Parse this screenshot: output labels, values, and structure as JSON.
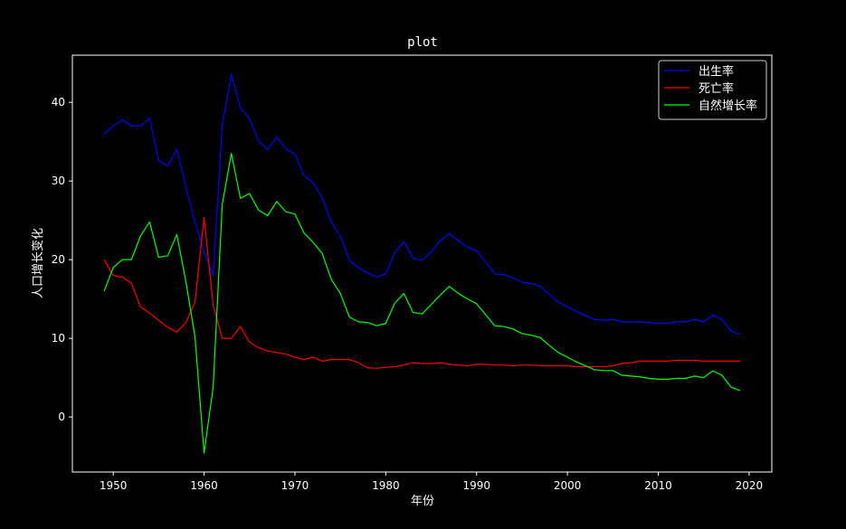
{
  "chart_data": {
    "type": "line",
    "title": "plot",
    "xlabel": "年份",
    "ylabel": "人口增长变化",
    "xlim": [
      1945.5,
      2022.5
    ],
    "ylim": [
      -7,
      46
    ],
    "xticks": [
      1950,
      1960,
      1970,
      1980,
      1990,
      2000,
      2010,
      2020
    ],
    "yticks": [
      0,
      10,
      20,
      30,
      40
    ],
    "legend_position": "top-right",
    "grid": false,
    "x": [
      1949,
      1950,
      1951,
      1952,
      1953,
      1954,
      1955,
      1956,
      1957,
      1958,
      1959,
      1960,
      1961,
      1962,
      1963,
      1964,
      1965,
      1966,
      1967,
      1968,
      1969,
      1970,
      1971,
      1972,
      1973,
      1974,
      1975,
      1976,
      1977,
      1978,
      1979,
      1980,
      1981,
      1982,
      1983,
      1984,
      1985,
      1986,
      1987,
      1988,
      1989,
      1990,
      1991,
      1992,
      1993,
      1994,
      1995,
      1996,
      1997,
      1998,
      1999,
      2000,
      2001,
      2002,
      2003,
      2004,
      2005,
      2006,
      2007,
      2008,
      2009,
      2010,
      2011,
      2012,
      2013,
      2014,
      2015,
      2016,
      2017,
      2018,
      2019
    ],
    "series": [
      {
        "name": "出生率",
        "color": "#0000ff",
        "values": [
          36.0,
          37.0,
          37.8,
          37.0,
          37.0,
          37.97,
          32.6,
          31.9,
          34.0,
          29.2,
          24.8,
          20.9,
          18.0,
          37.0,
          43.6,
          39.3,
          37.9,
          35.1,
          34.0,
          35.6,
          34.1,
          33.4,
          30.7,
          29.8,
          27.9,
          24.8,
          23.0,
          19.9,
          19.0,
          18.3,
          17.8,
          18.2,
          20.9,
          22.3,
          20.2,
          19.9,
          21.0,
          22.4,
          23.3,
          22.4,
          21.6,
          21.1,
          19.7,
          18.2,
          18.1,
          17.7,
          17.1,
          17.0,
          16.6,
          15.6,
          14.6,
          14.0,
          13.4,
          12.9,
          12.4,
          12.3,
          12.4,
          12.1,
          12.1,
          12.1,
          12.0,
          11.9,
          11.9,
          12.1,
          12.1,
          12.4,
          12.1,
          12.95,
          12.43,
          10.94,
          10.48
        ]
      },
      {
        "name": "死亡率",
        "color": "#ff0000",
        "values": [
          20.0,
          18.0,
          17.8,
          17.0,
          14.0,
          13.2,
          12.3,
          11.4,
          10.8,
          12.0,
          14.6,
          25.4,
          14.2,
          10.0,
          10.0,
          11.5,
          9.5,
          8.8,
          8.4,
          8.2,
          8.0,
          7.6,
          7.3,
          7.6,
          7.1,
          7.3,
          7.3,
          7.3,
          6.9,
          6.25,
          6.2,
          6.3,
          6.4,
          6.6,
          6.9,
          6.8,
          6.8,
          6.9,
          6.7,
          6.6,
          6.5,
          6.7,
          6.7,
          6.6,
          6.6,
          6.5,
          6.6,
          6.6,
          6.5,
          6.5,
          6.5,
          6.5,
          6.4,
          6.4,
          6.4,
          6.4,
          6.5,
          6.8,
          6.9,
          7.1,
          7.1,
          7.1,
          7.1,
          7.2,
          7.2,
          7.2,
          7.1,
          7.1,
          7.1,
          7.1,
          7.1
        ]
      },
      {
        "name": "自然增长率",
        "color": "#00ff00",
        "values": [
          16.0,
          19.0,
          20.0,
          20.0,
          23.0,
          24.8,
          20.3,
          20.5,
          23.2,
          17.2,
          10.2,
          -4.6,
          3.8,
          27.0,
          33.5,
          27.8,
          28.4,
          26.3,
          25.6,
          27.4,
          26.1,
          25.8,
          23.4,
          22.2,
          20.8,
          17.5,
          15.7,
          12.7,
          12.1,
          12.0,
          11.6,
          11.9,
          14.5,
          15.7,
          13.3,
          13.1,
          14.3,
          15.5,
          16.6,
          15.7,
          15.0,
          14.4,
          13.0,
          11.6,
          11.5,
          11.2,
          10.6,
          10.4,
          10.1,
          9.1,
          8.2,
          7.6,
          7.0,
          6.5,
          6.0,
          5.9,
          5.9,
          5.3,
          5.2,
          5.1,
          4.9,
          4.8,
          4.8,
          4.9,
          4.9,
          5.2,
          5.0,
          5.86,
          5.32,
          3.81,
          3.34
        ]
      }
    ]
  }
}
